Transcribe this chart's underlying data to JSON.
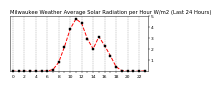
{
  "title": "Milwaukee Weather Average Solar Radiation per Hour W/m2 (Last 24 Hours)",
  "hours": [
    0,
    1,
    2,
    3,
    4,
    5,
    6,
    7,
    8,
    9,
    10,
    11,
    12,
    13,
    14,
    15,
    16,
    17,
    18,
    19,
    20,
    21,
    22,
    23
  ],
  "values": [
    0,
    0,
    0,
    0,
    0,
    0,
    2,
    15,
    80,
    220,
    380,
    470,
    430,
    290,
    200,
    310,
    230,
    140,
    40,
    5,
    0,
    0,
    0,
    3
  ],
  "line_color": "#ff0000",
  "marker_color": "#000000",
  "bg_color": "#ffffff",
  "plot_bg_color": "#ffffff",
  "grid_color": "#999999",
  "ylim": [
    0,
    500
  ],
  "yticks": [
    100,
    200,
    300,
    400,
    500
  ],
  "ytick_labels": [
    "1",
    "2",
    "3",
    "4",
    "5"
  ],
  "title_fontsize": 3.8,
  "axis_fontsize": 3.2,
  "marker_size": 1.8,
  "linewidth": 0.7
}
